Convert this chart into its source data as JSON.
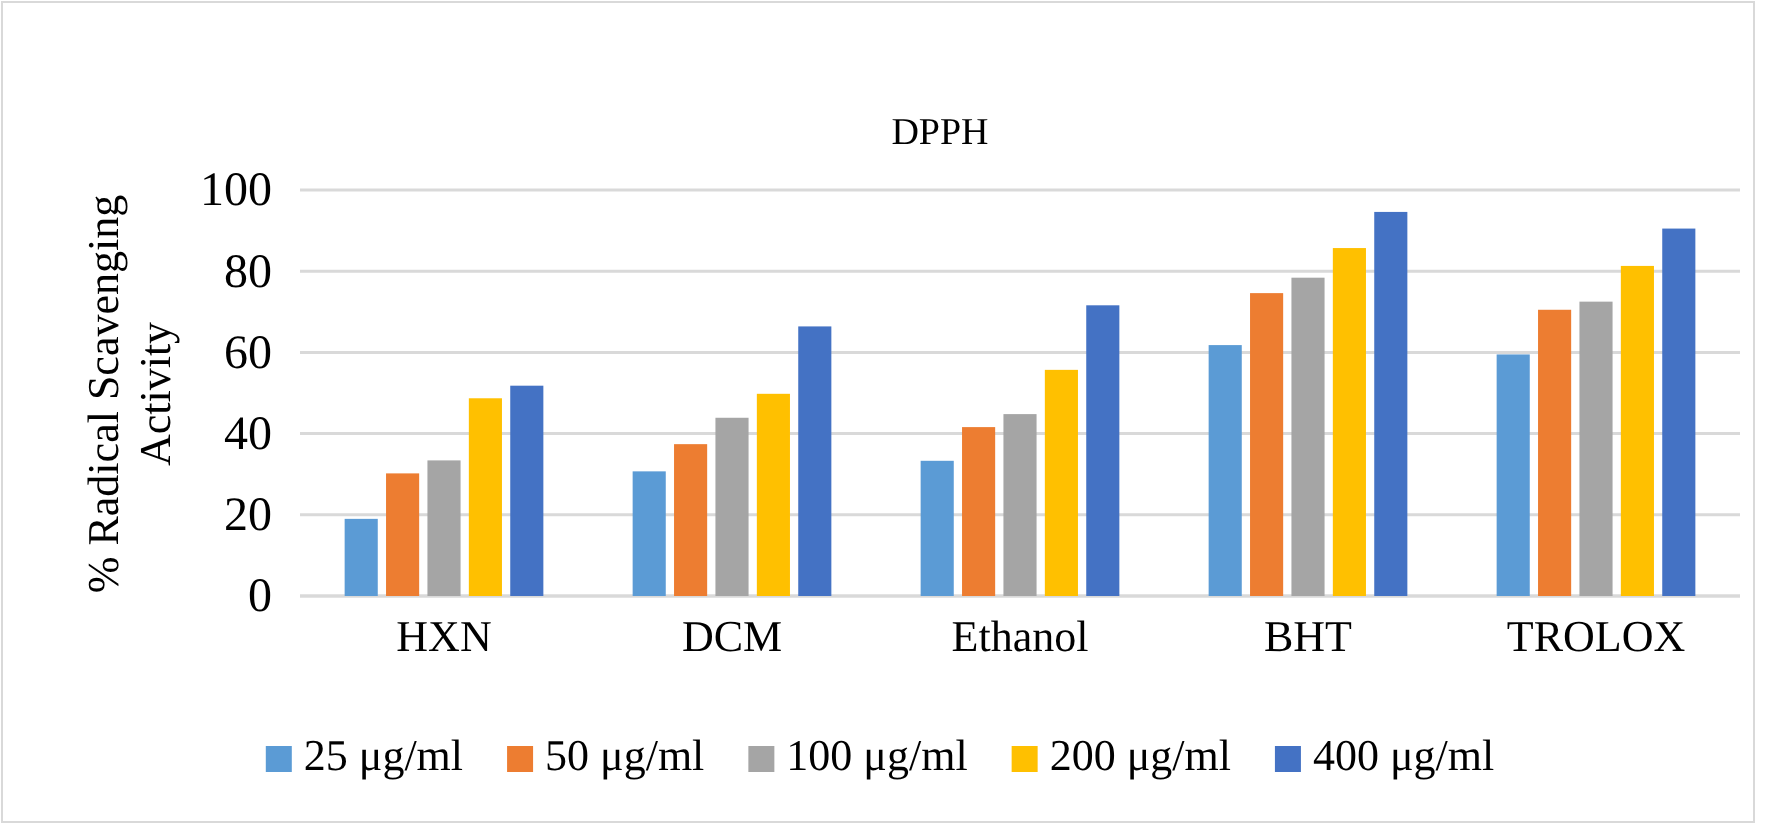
{
  "chart_data": {
    "type": "bar",
    "title": "DPPH",
    "ylabel": "% Radical Scavenging Activity",
    "categories": [
      "HXN",
      "DCM",
      "Ethanol",
      "BHT",
      "TROLOX"
    ],
    "series": [
      {
        "name": "25 μg/ml",
        "color": "#5b9bd5",
        "values": [
          19,
          30.7,
          33.3,
          61.8,
          59.5
        ]
      },
      {
        "name": "50 μg/ml",
        "color": "#ed7d31",
        "values": [
          30.2,
          37.4,
          41.6,
          74.6,
          70.5
        ]
      },
      {
        "name": "100 μg/ml",
        "color": "#a5a5a5",
        "values": [
          33.4,
          43.9,
          44.8,
          78.4,
          72.5
        ]
      },
      {
        "name": "200 μg/ml",
        "color": "#ffc000",
        "values": [
          48.7,
          49.8,
          55.7,
          85.7,
          81.3
        ]
      },
      {
        "name": "400 μg/ml",
        "color": "#4472c4",
        "values": [
          51.8,
          66.4,
          71.6,
          94.6,
          90.5
        ]
      }
    ],
    "ylim": [
      0,
      100
    ],
    "yticks": [
      0,
      20,
      40,
      60,
      80,
      100
    ],
    "grid": "y",
    "legend": "bottom"
  }
}
